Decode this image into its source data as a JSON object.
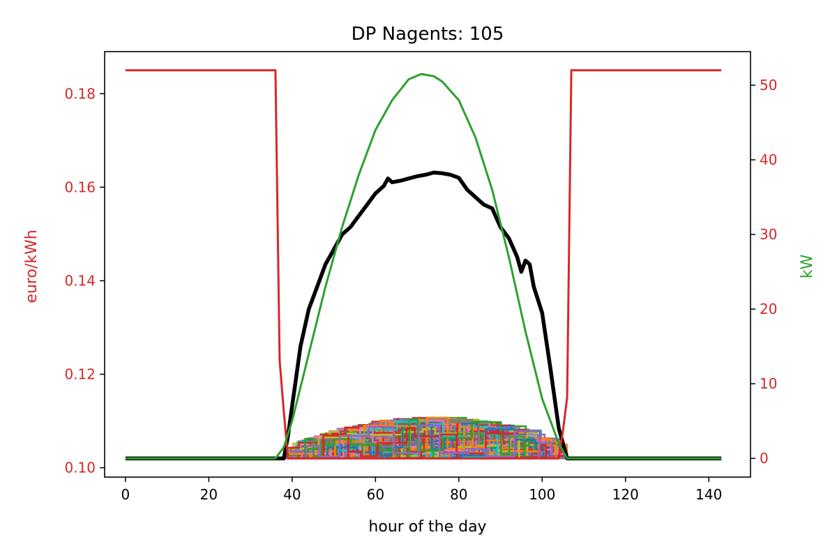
{
  "chart_data": {
    "type": "line",
    "title": "DP Nagents: 105",
    "xlabel": "hour of the day",
    "ylabel_left": "euro/kWh",
    "ylabel_right": "kW",
    "xlim": [
      -5,
      150
    ],
    "ylim_left": [
      0.098,
      0.189
    ],
    "ylim_right": [
      -2.5,
      54.5
    ],
    "x_ticks": [
      0,
      20,
      40,
      60,
      80,
      100,
      120,
      140
    ],
    "y_left_ticks": [
      0.1,
      0.12,
      0.14,
      0.16,
      0.18
    ],
    "y_right_ticks": [
      0,
      10,
      20,
      30,
      40,
      50
    ],
    "grid": false,
    "colors": {
      "price": "#d62728",
      "solar": "#2ca02c",
      "total_load": "#000000",
      "left_axis_labels": "#d62728",
      "right_axis_label": "#2ca02c",
      "agents_palette": [
        "#1f77b4",
        "#ff7f0e",
        "#2ca02c",
        "#d62728",
        "#9467bd",
        "#8c564b",
        "#e377c2",
        "#7f7f7f",
        "#bcbd22",
        "#17becf"
      ]
    },
    "series": [
      {
        "key": "price",
        "axis": "left",
        "x": [
          0,
          36,
          37,
          38,
          39,
          104,
          105,
          106,
          107,
          143
        ],
        "y": [
          0.185,
          0.185,
          0.123,
          0.112,
          0.102,
          0.102,
          0.108,
          0.115,
          0.185,
          0.185
        ]
      },
      {
        "key": "solar",
        "axis": "right",
        "x": [
          0,
          36,
          38,
          40,
          44,
          48,
          52,
          56,
          60,
          64,
          68,
          71,
          72,
          74,
          76,
          80,
          84,
          88,
          92,
          96,
          100,
          104,
          106,
          107,
          143
        ],
        "y": [
          0,
          0,
          1.5,
          5,
          14,
          23,
          31,
          38,
          44,
          48,
          50.8,
          51.5,
          51.4,
          51.2,
          50.5,
          48,
          43,
          36,
          27,
          17,
          8,
          2,
          0,
          0,
          0
        ]
      },
      {
        "key": "total_load",
        "axis": "right",
        "x": [
          0,
          36,
          38,
          39,
          40,
          42,
          44,
          46,
          48,
          50,
          52,
          54,
          56,
          58,
          60,
          62,
          63,
          64,
          66,
          68,
          70,
          72,
          74,
          76,
          78,
          80,
          82,
          84,
          86,
          88,
          90,
          92,
          94,
          95,
          96,
          97,
          98,
          100,
          102,
          104,
          106,
          107,
          143
        ],
        "y": [
          0,
          0,
          0,
          3,
          7,
          15,
          20,
          23,
          26,
          28,
          30,
          31,
          32.5,
          34,
          35.5,
          36.5,
          37.5,
          37,
          37.2,
          37.5,
          37.8,
          38,
          38.3,
          38.2,
          38,
          37.6,
          36,
          35,
          34,
          33.5,
          31,
          29.5,
          27,
          25,
          26.5,
          26,
          23,
          19.5,
          12,
          4,
          0,
          0,
          0
        ]
      }
    ],
    "agent_loads": {
      "count": 105,
      "axis": "right",
      "x_range": [
        38,
        106
      ],
      "y_range": [
        0,
        5.5
      ]
    }
  }
}
